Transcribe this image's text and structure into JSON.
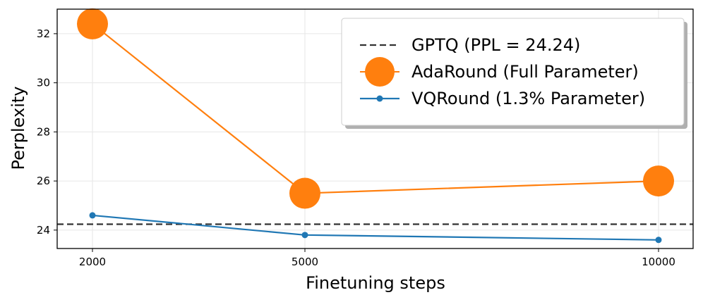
{
  "chart_data": {
    "type": "line",
    "x_ticks": [
      "2000",
      "5000",
      "10000"
    ],
    "x_values": [
      2000,
      5000,
      10000
    ],
    "xlabel": "Finetuning steps",
    "ylabel": "Perplexity",
    "y_ticks": [
      "24",
      "26",
      "28",
      "30",
      "32"
    ],
    "ylim": [
      23.25,
      33.0
    ],
    "grid": true,
    "legend_position": "top-right",
    "reference_line": {
      "name": "GPTQ (PPL = 24.24)",
      "y": 24.24,
      "color": "#333333",
      "style": "dashed"
    },
    "series": [
      {
        "name": "AdaRound (Full Parameter)",
        "color": "#ff7f0e",
        "marker": "large-circle",
        "values": [
          32.4,
          25.5,
          26.0
        ]
      },
      {
        "name": "VQRound (1.3% Parameter)",
        "color": "#1f77b4",
        "marker": "small-circle",
        "values": [
          24.6,
          23.8,
          23.6
        ]
      }
    ]
  }
}
